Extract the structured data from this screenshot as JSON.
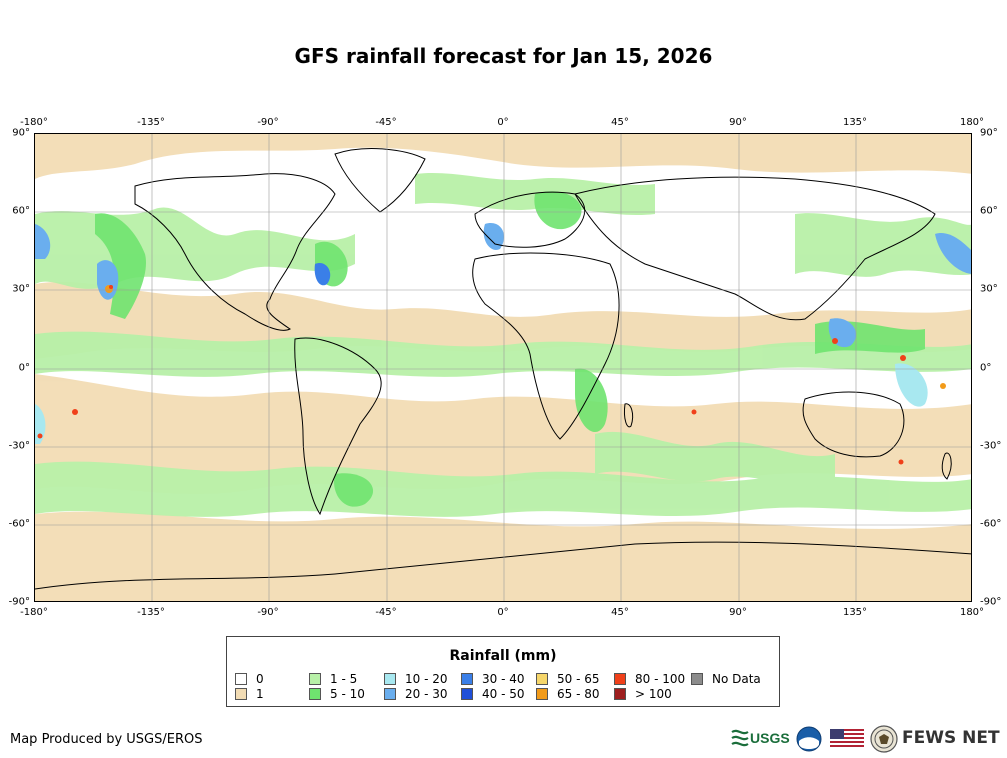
{
  "title": "GFS rainfall forecast for Jan 15, 2026",
  "axes": {
    "lon_ticks": [
      "-180°",
      "-135°",
      "-90°",
      "-45°",
      "0°",
      "45°",
      "90°",
      "135°",
      "180°"
    ],
    "lat_ticks": [
      "90°",
      "60°",
      "30°",
      "0°",
      "-30°",
      "-60°",
      "-90°"
    ]
  },
  "legend": {
    "title": "Rainfall (mm)",
    "items": [
      {
        "label": "0",
        "color": "#ffffff"
      },
      {
        "label": "1",
        "color": "#f2dcb4"
      },
      {
        "label": "1 - 5",
        "color": "#b8f0a8"
      },
      {
        "label": "5 - 10",
        "color": "#6fe36f"
      },
      {
        "label": "10 - 20",
        "color": "#a8e8f0"
      },
      {
        "label": "20 - 30",
        "color": "#6aaeee"
      },
      {
        "label": "30 - 40",
        "color": "#3a7fe8"
      },
      {
        "label": "40 - 50",
        "color": "#1f4fd8"
      },
      {
        "label": "50 - 65",
        "color": "#f6d66a"
      },
      {
        "label": "65 - 80",
        "color": "#f29b1a"
      },
      {
        "label": "80 - 100",
        "color": "#f0401a"
      },
      {
        "label": "> 100",
        "color": "#9e1f1f"
      },
      {
        "label": "No Data",
        "color": "#8c8c8c"
      }
    ]
  },
  "credit": "Map Produced by USGS/EROS",
  "logos": {
    "usgs": "USGS",
    "fews": "FEWS NET",
    "usgs_icon": "usgs-logo-icon",
    "noaa_icon": "noaa-logo-icon",
    "flag_icon": "us-flag-icon",
    "state_icon": "state-dept-seal-icon"
  }
}
